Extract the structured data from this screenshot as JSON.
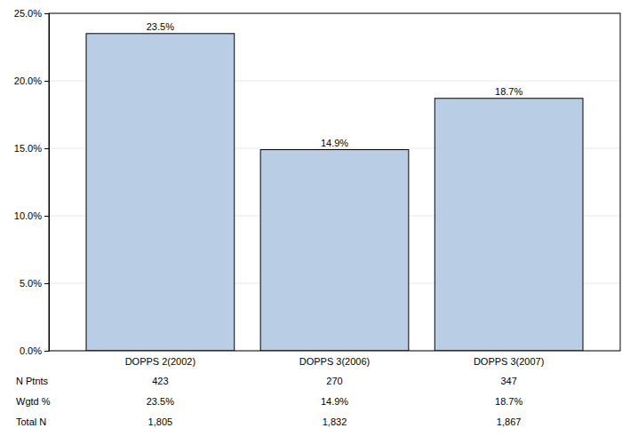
{
  "chart_data": {
    "type": "bar",
    "categories": [
      "DOPPS 2(2002)",
      "DOPPS 3(2006)",
      "DOPPS 3(2007)"
    ],
    "values": [
      23.5,
      14.9,
      18.7
    ],
    "value_labels": [
      "23.5%",
      "14.9%",
      "18.7%"
    ],
    "color": "#b9cde5",
    "ylim": [
      0,
      25
    ],
    "yticks": [
      {
        "value": 0,
        "label": "0.0%"
      },
      {
        "value": 5,
        "label": "5.0%"
      },
      {
        "value": 10,
        "label": "10.0%"
      },
      {
        "value": 15,
        "label": "15.0%"
      },
      {
        "value": 20,
        "label": "20.0%"
      },
      {
        "value": 25,
        "label": "25.0%"
      }
    ],
    "grid": true,
    "data_labels": true
  },
  "table": {
    "rows": [
      {
        "header": "N Ptnts",
        "cells": [
          "423",
          "270",
          "347"
        ]
      },
      {
        "header": "Wgtd %",
        "cells": [
          "23.5%",
          "14.9%",
          "18.7%"
        ]
      },
      {
        "header": "Total N",
        "cells": [
          "1,805",
          "1,832",
          "1,867"
        ]
      }
    ]
  }
}
